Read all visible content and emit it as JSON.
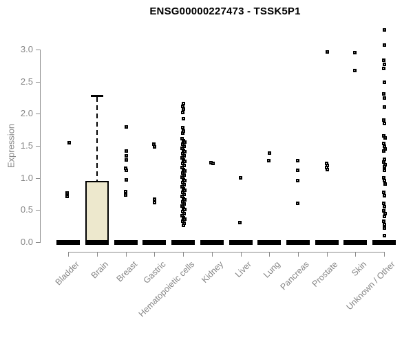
{
  "chart_data": {
    "type": "boxplot",
    "title": "ENSG00000227473 - TSSK5P1",
    "ylabel": "Expression",
    "xlabel": "",
    "ylim": [
      0,
      3.3
    ],
    "yticks": [
      0,
      0.5,
      1,
      1.5,
      2,
      2.5,
      3
    ],
    "ytick_labels": [
      "0.0",
      "0.5",
      "1.0",
      "1.5",
      "2.0",
      "2.5",
      "3.0"
    ],
    "grid": false,
    "legend": false,
    "colors": {
      "box_fill": "#ede8cd",
      "box_border": "#000000",
      "axis_line": "#8a8a8a",
      "axis_text": "#858585",
      "point": "#000000",
      "title_text": "#000000",
      "background": "#ffffff"
    },
    "categories": [
      {
        "label": "Bladder",
        "box": {
          "q1": 0,
          "median": 0,
          "q3": 0
        },
        "points": [
          [
            1.55,
            1
          ],
          [
            0.77,
            -2
          ],
          [
            0.72,
            -2
          ]
        ]
      },
      {
        "label": "Brain",
        "box": {
          "q1": 0,
          "median": 0,
          "q3": 0.95,
          "whisker_high": 2.28
        },
        "points": []
      },
      {
        "label": "Breast",
        "box": {
          "q1": 0,
          "median": 0,
          "q3": 0
        },
        "points": [
          [
            1.8,
            0
          ],
          [
            1.43,
            0
          ],
          [
            1.35,
            0
          ],
          [
            1.29,
            0
          ],
          [
            1.16,
            -1
          ],
          [
            1.12,
            0
          ],
          [
            0.97,
            0
          ],
          [
            0.79,
            -1
          ],
          [
            0.74,
            -1
          ]
        ]
      },
      {
        "label": "Gastric",
        "box": {
          "q1": 0,
          "median": 0,
          "q3": 0
        },
        "points": [
          [
            1.53,
            -1
          ],
          [
            1.49,
            0
          ],
          [
            0.68,
            0
          ],
          [
            0.62,
            0
          ]
        ]
      },
      {
        "label": "Hematopoietic cells",
        "box": {
          "q1": 0,
          "median": 0,
          "q3": 0
        },
        "points": [
          [
            2.16,
            0
          ],
          [
            2.12,
            -1
          ],
          [
            2.08,
            0
          ],
          [
            2.03,
            -1
          ],
          [
            1.93,
            0
          ],
          [
            1.79,
            -1
          ],
          [
            1.74,
            0
          ],
          [
            1.7,
            -1
          ],
          [
            1.62,
            -2
          ],
          [
            1.59,
            0
          ],
          [
            1.56,
            2
          ],
          [
            1.53,
            -1
          ],
          [
            1.5,
            1
          ],
          [
            1.47,
            -2
          ],
          [
            1.44,
            0
          ],
          [
            1.41,
            2
          ],
          [
            1.38,
            -1
          ],
          [
            1.35,
            1
          ],
          [
            1.32,
            -2
          ],
          [
            1.29,
            0
          ],
          [
            1.26,
            2
          ],
          [
            1.23,
            -1
          ],
          [
            1.2,
            1
          ],
          [
            1.17,
            -2
          ],
          [
            1.14,
            0
          ],
          [
            1.11,
            2
          ],
          [
            1.08,
            -1
          ],
          [
            1.05,
            1
          ],
          [
            1.02,
            -2
          ],
          [
            0.99,
            0
          ],
          [
            0.96,
            2
          ],
          [
            0.93,
            -1
          ],
          [
            0.9,
            1
          ],
          [
            0.87,
            -2
          ],
          [
            0.84,
            0
          ],
          [
            0.81,
            2
          ],
          [
            0.78,
            -1
          ],
          [
            0.75,
            1
          ],
          [
            0.72,
            -2
          ],
          [
            0.69,
            0
          ],
          [
            0.66,
            2
          ],
          [
            0.63,
            -1
          ],
          [
            0.6,
            1
          ],
          [
            0.57,
            -2
          ],
          [
            0.54,
            0
          ],
          [
            0.51,
            2
          ],
          [
            0.48,
            -1
          ],
          [
            0.45,
            1
          ],
          [
            0.42,
            -2
          ],
          [
            0.39,
            0
          ],
          [
            0.36,
            2
          ],
          [
            0.33,
            -1
          ],
          [
            0.3,
            1
          ],
          [
            0.27,
            0
          ]
        ]
      },
      {
        "label": "Kidney",
        "box": {
          "q1": 0,
          "median": 0,
          "q3": 0
        },
        "points": [
          [
            1.24,
            -2
          ],
          [
            1.23,
            1
          ]
        ]
      },
      {
        "label": "Liver",
        "box": {
          "q1": 0,
          "median": 0,
          "q3": 0
        },
        "points": [
          [
            1.01,
            -1
          ],
          [
            0.31,
            -2
          ]
        ]
      },
      {
        "label": "Lung",
        "box": {
          "q1": 0,
          "median": 0,
          "q3": 0
        },
        "points": [
          [
            1.39,
            0
          ],
          [
            1.28,
            -1
          ]
        ]
      },
      {
        "label": "Pancreas",
        "box": {
          "q1": 0,
          "median": 0,
          "q3": 0
        },
        "points": [
          [
            1.28,
            -1
          ],
          [
            1.13,
            -1
          ],
          [
            0.96,
            -1
          ],
          [
            0.61,
            -1
          ]
        ]
      },
      {
        "label": "Prostate",
        "box": {
          "q1": 0,
          "median": 0,
          "q3": 0
        },
        "points": [
          [
            2.97,
            0
          ],
          [
            1.23,
            -1
          ],
          [
            1.2,
            0
          ],
          [
            1.17,
            -1
          ],
          [
            1.14,
            0
          ]
        ]
      },
      {
        "label": "Skin",
        "box": {
          "q1": 0,
          "median": 0,
          "q3": 0
        },
        "points": [
          [
            2.96,
            -1
          ],
          [
            2.68,
            -1
          ]
        ]
      },
      {
        "label": "Unknown / Other",
        "box": {
          "q1": 0,
          "median": 0,
          "q3": 0
        },
        "points": [
          [
            3.31,
            0
          ],
          [
            3.07,
            0
          ],
          [
            2.84,
            -1
          ],
          [
            2.78,
            0
          ],
          [
            2.71,
            -1
          ],
          [
            2.5,
            0
          ],
          [
            2.31,
            -1
          ],
          [
            2.25,
            0
          ],
          [
            2.11,
            0
          ],
          [
            1.91,
            -1
          ],
          [
            1.85,
            0
          ],
          [
            1.66,
            -1
          ],
          [
            1.63,
            1
          ],
          [
            1.54,
            -1
          ],
          [
            1.5,
            0
          ],
          [
            1.46,
            1
          ],
          [
            1.42,
            -1
          ],
          [
            1.3,
            0
          ],
          [
            1.25,
            -1
          ],
          [
            1.21,
            1
          ],
          [
            1.18,
            0
          ],
          [
            1.13,
            0
          ],
          [
            1.01,
            -1
          ],
          [
            0.96,
            0
          ],
          [
            0.91,
            1
          ],
          [
            0.78,
            -1
          ],
          [
            0.73,
            0
          ],
          [
            0.61,
            -1
          ],
          [
            0.56,
            0
          ],
          [
            0.49,
            -1
          ],
          [
            0.45,
            1
          ],
          [
            0.41,
            0
          ],
          [
            0.33,
            -1
          ],
          [
            0.28,
            0
          ],
          [
            0.22,
            0
          ],
          [
            0.11,
            0
          ]
        ]
      }
    ]
  }
}
